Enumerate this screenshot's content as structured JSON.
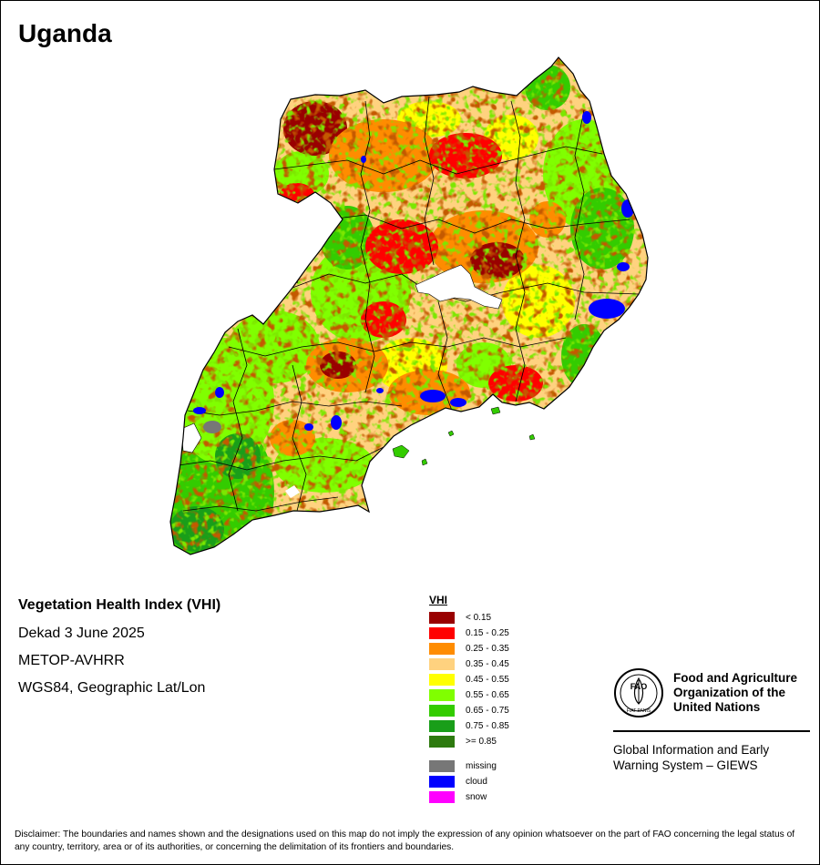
{
  "map": {
    "title": "Uganda",
    "index_name": "Vegetation Health Index (VHI)",
    "period": "Dekad 3 June 2025",
    "sensor": "METOP-AVHRR",
    "projection": "WGS84, Geographic Lat/Lon"
  },
  "legend": {
    "title": "VHI",
    "classes": [
      {
        "label": "< 0.15",
        "color": "#990000"
      },
      {
        "label": "0.15 - 0.25",
        "color": "#ff0000"
      },
      {
        "label": "0.25 - 0.35",
        "color": "#ff8c00"
      },
      {
        "label": "0.35 - 0.45",
        "color": "#ffd27f"
      },
      {
        "label": "0.45 - 0.55",
        "color": "#ffff00"
      },
      {
        "label": "0.55 - 0.65",
        "color": "#80ff00"
      },
      {
        "label": "0.65 - 0.75",
        "color": "#33cc00"
      },
      {
        "label": "0.75 - 0.85",
        "color": "#199e19"
      },
      {
        "label": ">= 0.85",
        "color": "#2d7a0f"
      }
    ],
    "extras": [
      {
        "label": "missing",
        "color": "#777777"
      },
      {
        "label": "cloud",
        "color": "#0000ff"
      },
      {
        "label": "snow",
        "color": "#ff00ff"
      }
    ]
  },
  "organization": {
    "emblem_motto": "FIAT PANIS",
    "emblem_letters": "FAO",
    "name_lines": [
      "Food and Agriculture",
      "Organization of the",
      "United Nations"
    ],
    "program_lines": [
      "Global Information and Early",
      "Warning System – GIEWS"
    ]
  },
  "disclaimer": "Disclaimer: The boundaries and names shown and the designations used on this map do not imply the expression of any opinion whatsoever on the part of FAO concerning the legal status of any country, territory, area or of its authorities, or concerning the delimitation of its frontiers and boundaries."
}
